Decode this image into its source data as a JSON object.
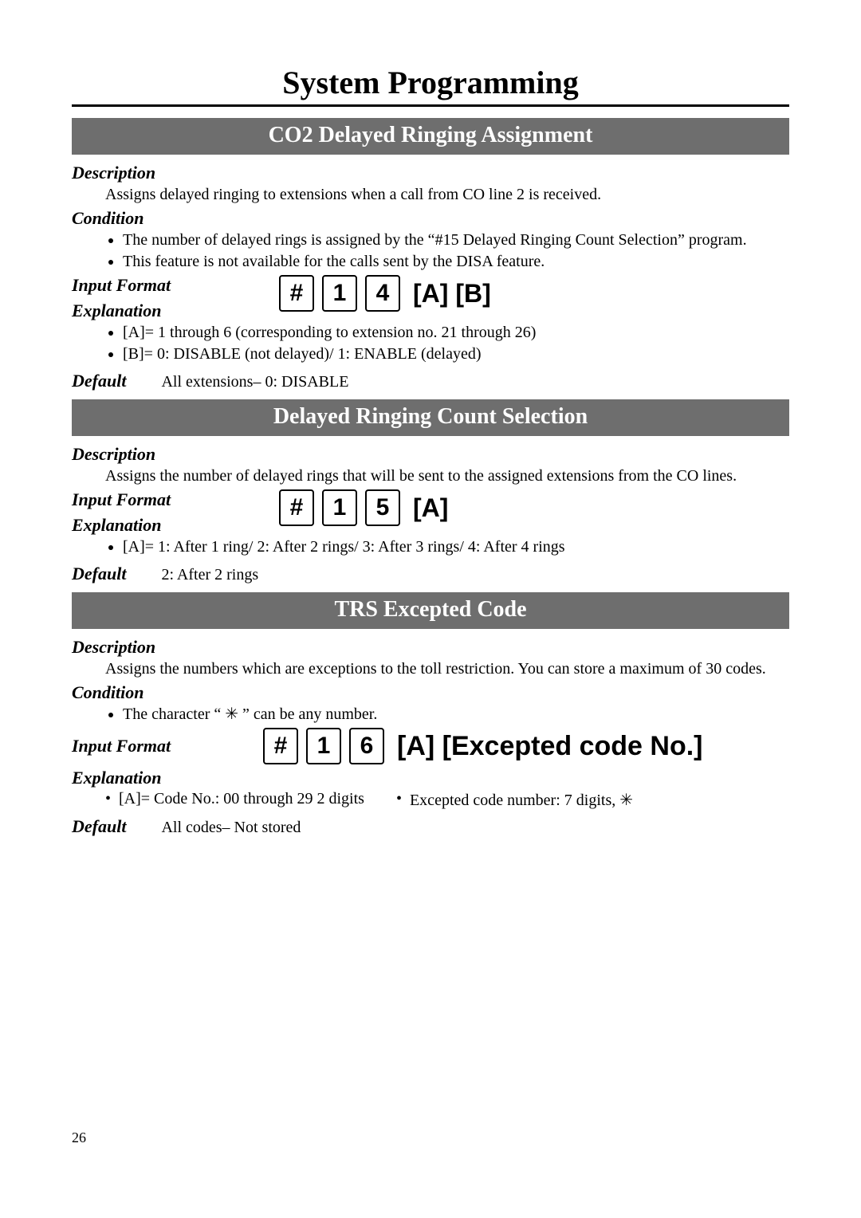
{
  "page": {
    "title": "System Programming",
    "number": "26",
    "colors": {
      "bar_bg": "#6e6e6e",
      "bar_fg": "#ffffff",
      "text": "#000000",
      "bg": "#ffffff"
    }
  },
  "sections": [
    {
      "bar": "CO2 Delayed Ringing Assignment",
      "description_label": "Description",
      "description": "Assigns delayed ringing to extensions when a call from CO line 2 is received.",
      "condition_label": "Condition",
      "conditions": [
        "The number of delayed rings is assigned by the “#15 Delayed Ringing Count Selection” program.",
        "This feature is not available for the calls sent by the DISA feature."
      ],
      "input_format_label": "Input Format",
      "explanation_label": "Explanation",
      "keys": [
        "#",
        "1",
        "4"
      ],
      "params": "[A] [B]",
      "explanations": [
        "[A]= 1 through 6 (corresponding to extension no. 21 through 26)",
        "[B]= 0: DISABLE (not delayed)/ 1: ENABLE (delayed)"
      ],
      "default_label": "Default",
      "default_value": "All extensions– 0: DISABLE"
    },
    {
      "bar": "Delayed Ringing Count Selection",
      "description_label": "Description",
      "description": "Assigns the number of delayed rings that will be sent to the assigned extensions from the CO lines.",
      "input_format_label": "Input Format",
      "explanation_label": "Explanation",
      "keys": [
        "#",
        "1",
        "5"
      ],
      "params": "[A]",
      "explanations": [
        "[A]= 1: After 1 ring/ 2: After 2 rings/ 3: After 3 rings/ 4: After 4 rings"
      ],
      "default_label": "Default",
      "default_value": "2: After 2 rings"
    },
    {
      "bar": "TRS Excepted Code",
      "description_label": "Description",
      "description": "Assigns the numbers which are exceptions to the toll restriction.  You can store a maximum of 30 codes.",
      "condition_label": "Condition",
      "conditions": [
        "The character “ ✳ ” can be any number."
      ],
      "input_format_label": "Input Format",
      "explanation_label": "Explanation",
      "keys": [
        "#",
        "1",
        "6"
      ],
      "params": "[A] [Excepted code No.]",
      "explanation_cols": {
        "left": "[A]= Code No.: 00 through 29   2 digits",
        "right": "Excepted code number: 7 digits,  ✳"
      },
      "default_label": "Default",
      "default_value": "All codes– Not stored"
    }
  ]
}
